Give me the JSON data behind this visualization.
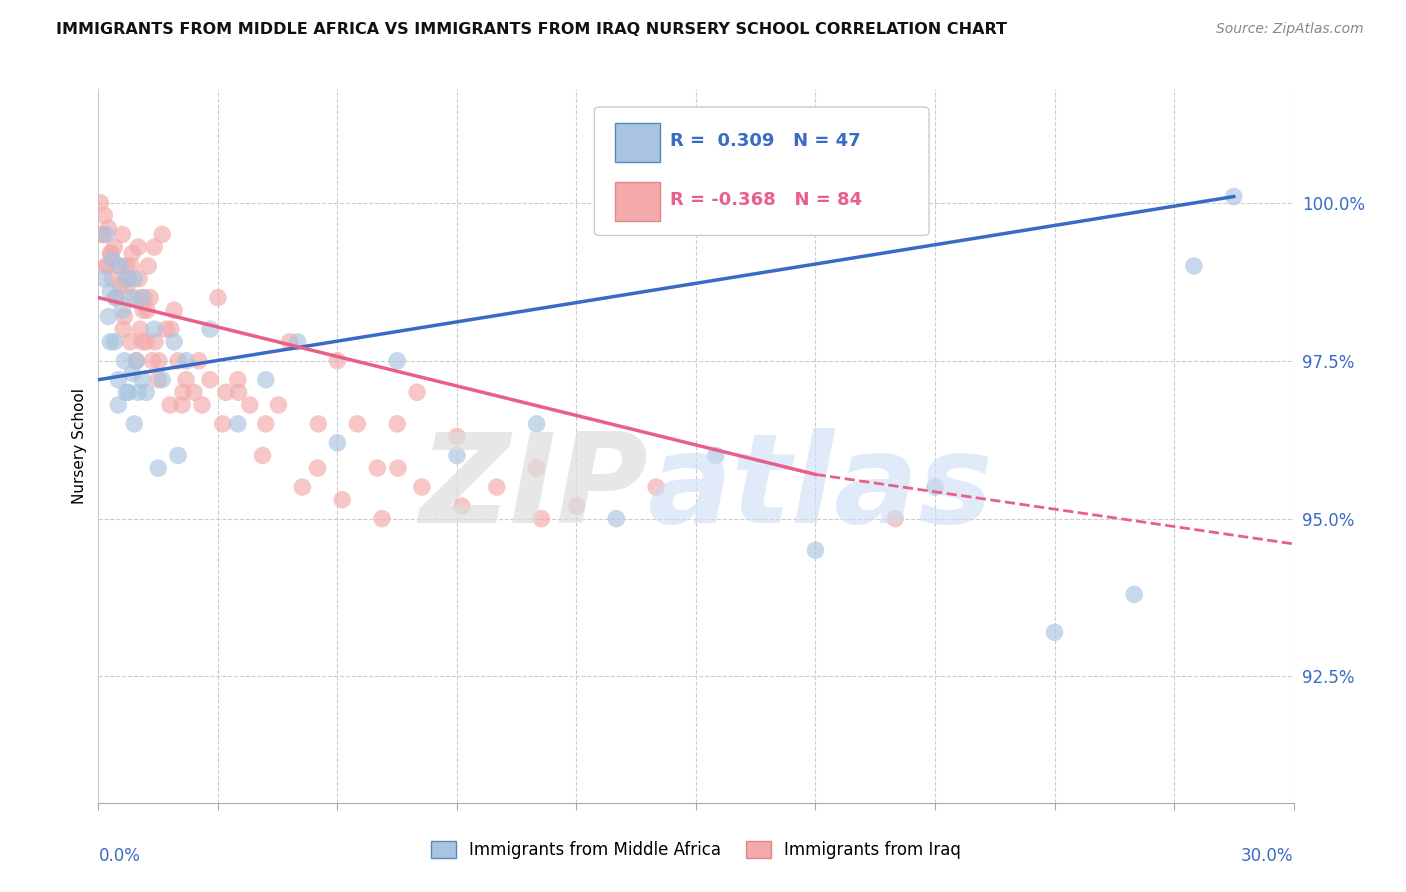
{
  "title": "IMMIGRANTS FROM MIDDLE AFRICA VS IMMIGRANTS FROM IRAQ NURSERY SCHOOL CORRELATION CHART",
  "source": "Source: ZipAtlas.com",
  "ylabel": "Nursery School",
  "yticks": [
    92.5,
    95.0,
    97.5,
    100.0
  ],
  "ytick_labels": [
    "92.5%",
    "95.0%",
    "97.5%",
    "100.0%"
  ],
  "xlim": [
    0.0,
    30.0
  ],
  "ylim": [
    90.5,
    101.8
  ],
  "blue_R": 0.309,
  "blue_N": 47,
  "pink_R": -0.368,
  "pink_N": 84,
  "blue_color": "#A8C4E0",
  "pink_color": "#F4AAAA",
  "blue_line_color": "#3A6BC4",
  "pink_line_color": "#E8608A",
  "legend_label_blue": "Immigrants from Middle Africa",
  "legend_label_pink": "Immigrants from Iraq",
  "blue_line_x0": 0.0,
  "blue_line_y0": 97.2,
  "blue_line_x1": 28.5,
  "blue_line_y1": 100.1,
  "pink_line_x0": 0.0,
  "pink_line_y0": 98.5,
  "pink_line_x1_solid": 18.0,
  "pink_line_y1_solid": 95.7,
  "pink_line_x1_dash": 30.0,
  "pink_line_y1_dash": 94.6,
  "blue_scatter_x": [
    0.15,
    0.2,
    0.25,
    0.3,
    0.35,
    0.4,
    0.45,
    0.5,
    0.55,
    0.6,
    0.65,
    0.7,
    0.75,
    0.8,
    0.85,
    0.9,
    0.95,
    1.0,
    1.1,
    1.2,
    1.4,
    1.6,
    1.9,
    2.2,
    2.8,
    3.5,
    4.2,
    5.0,
    6.0,
    7.5,
    9.0,
    11.0,
    13.0,
    15.5,
    18.0,
    21.0,
    24.0,
    26.0,
    27.5,
    28.5,
    0.3,
    0.5,
    0.7,
    0.9,
    1.1,
    1.5,
    2.0
  ],
  "blue_scatter_y": [
    98.8,
    99.5,
    98.2,
    98.6,
    99.1,
    97.8,
    98.5,
    97.2,
    99.0,
    98.3,
    97.5,
    98.8,
    97.0,
    98.5,
    97.3,
    98.8,
    97.5,
    97.0,
    98.5,
    97.0,
    98.0,
    97.2,
    97.8,
    97.5,
    98.0,
    96.5,
    97.2,
    97.8,
    96.2,
    97.5,
    96.0,
    96.5,
    95.0,
    96.0,
    94.5,
    95.5,
    93.2,
    93.8,
    99.0,
    100.1,
    97.8,
    96.8,
    97.0,
    96.5,
    97.2,
    95.8,
    96.0
  ],
  "pink_scatter_x": [
    0.05,
    0.1,
    0.15,
    0.2,
    0.25,
    0.3,
    0.35,
    0.4,
    0.45,
    0.5,
    0.55,
    0.6,
    0.65,
    0.7,
    0.75,
    0.8,
    0.85,
    0.9,
    0.95,
    1.0,
    1.05,
    1.1,
    1.15,
    1.2,
    1.25,
    1.3,
    1.35,
    1.4,
    1.5,
    1.6,
    1.7,
    1.8,
    1.9,
    2.0,
    2.1,
    2.2,
    2.4,
    2.6,
    2.8,
    3.0,
    3.2,
    3.5,
    3.8,
    4.2,
    4.8,
    5.5,
    6.0,
    6.5,
    7.0,
    7.5,
    8.0,
    9.0,
    10.0,
    11.0,
    12.0,
    14.0,
    0.12,
    0.22,
    0.42,
    0.62,
    0.82,
    1.02,
    1.22,
    1.42,
    1.82,
    2.52,
    3.52,
    4.52,
    5.52,
    7.52,
    0.32,
    0.72,
    1.12,
    1.52,
    2.12,
    3.12,
    4.12,
    5.12,
    6.12,
    7.12,
    8.12,
    9.12,
    11.12,
    20.0
  ],
  "pink_scatter_y": [
    100.0,
    99.5,
    99.8,
    99.0,
    99.6,
    99.2,
    98.8,
    99.3,
    98.5,
    99.0,
    98.7,
    99.5,
    98.2,
    99.0,
    98.8,
    97.8,
    99.2,
    98.5,
    97.5,
    99.3,
    98.0,
    97.8,
    98.5,
    97.8,
    99.0,
    98.5,
    97.5,
    99.3,
    97.2,
    99.5,
    98.0,
    96.8,
    98.3,
    97.5,
    96.8,
    97.2,
    97.0,
    96.8,
    97.2,
    98.5,
    97.0,
    97.2,
    96.8,
    96.5,
    97.8,
    95.8,
    97.5,
    96.5,
    95.8,
    96.5,
    97.0,
    96.3,
    95.5,
    95.8,
    95.2,
    95.5,
    99.5,
    99.0,
    98.5,
    98.0,
    99.0,
    98.8,
    98.3,
    97.8,
    98.0,
    97.5,
    97.0,
    96.8,
    96.5,
    95.8,
    99.2,
    98.7,
    98.3,
    97.5,
    97.0,
    96.5,
    96.0,
    95.5,
    95.3,
    95.0,
    95.5,
    95.2,
    95.0,
    95.0
  ]
}
